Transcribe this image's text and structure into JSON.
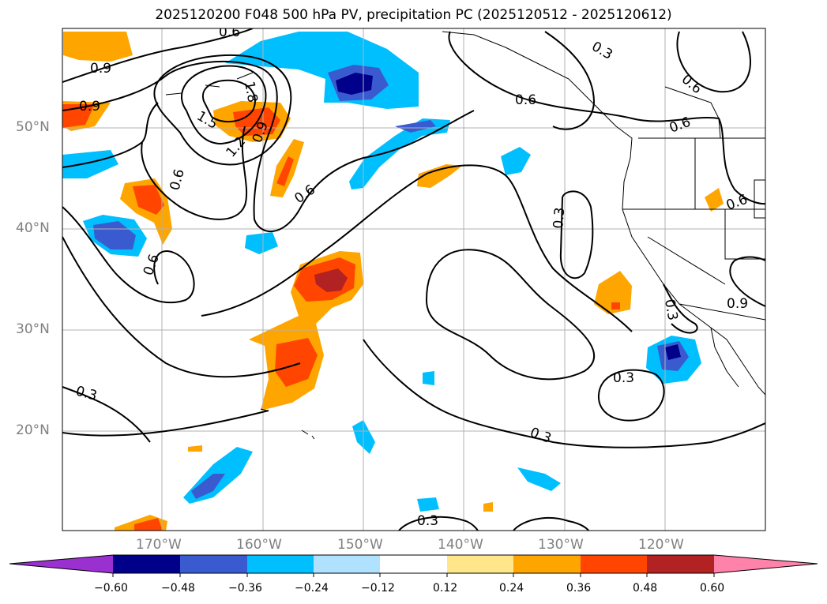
{
  "title": "2025120200 F048 500 hPa PV, precipitation PC (2025120512 - 2025120612)",
  "lat_labels": [
    "50°N",
    "40°N",
    "30°N",
    "20°N"
  ],
  "lon_labels": [
    "170°W",
    "160°W",
    "150°W",
    "140°W",
    "130°W",
    "120°W"
  ],
  "contour_labels": [
    "0.9",
    "0.9",
    "0.6",
    "0.3",
    "0.6",
    "1.5",
    "1.8",
    "1.2",
    "0.9",
    "0.6",
    "0.6",
    "0.6",
    "0.6",
    "0.3",
    "0.6",
    "0.9",
    "0.3",
    "0.6",
    "0.3",
    "0.3",
    "0.3",
    "0.3"
  ],
  "colorbar": {
    "ticks": [
      "−0.60",
      "−0.48",
      "−0.36",
      "−0.24",
      "−0.12",
      "0.12",
      "0.24",
      "0.36",
      "0.48",
      "0.60"
    ],
    "colors": [
      "#9b30d0",
      "#00008b",
      "#3a5bcf",
      "#00bfff",
      "#b0e2ff",
      "#ffffff",
      "#ffe68a",
      "#ffa500",
      "#ff4500",
      "#b22222",
      "#ff82ab"
    ]
  },
  "colors": {
    "orange": "#ffa500",
    "red_orange": "#ff4500",
    "dark_red": "#b22222",
    "sky": "#00bfff",
    "royal": "#3a5bcf",
    "navy": "#00008b",
    "grid": "#b0b0b0",
    "label": "#808080"
  }
}
